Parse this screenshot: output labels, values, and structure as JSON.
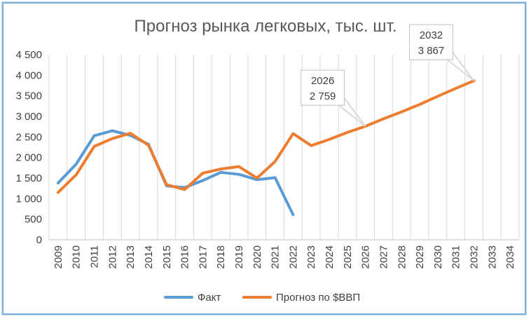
{
  "chart_data": {
    "type": "line",
    "title": "Прогноз рынка легковых, тыс. шт.",
    "xlabel": "",
    "ylabel": "",
    "ylim": [
      0,
      4500
    ],
    "y_ticks": [
      0,
      500,
      1000,
      1500,
      2000,
      2500,
      3000,
      3500,
      4000,
      4500
    ],
    "y_tick_labels": [
      "0",
      "500",
      "1 000",
      "1 500",
      "2 000",
      "2 500",
      "3 000",
      "3 500",
      "4 000",
      "4 500"
    ],
    "categories": [
      "2009",
      "2010",
      "2011",
      "2012",
      "2013",
      "2014",
      "2015",
      "2016",
      "2017",
      "2018",
      "2019",
      "2020",
      "2021",
      "2022",
      "2023",
      "2024",
      "2025",
      "2026",
      "2027",
      "2028",
      "2029",
      "2030",
      "2031",
      "2032",
      "2033",
      "2034"
    ],
    "grid": "vertical",
    "legend_position": "bottom",
    "series": [
      {
        "name": "Факт",
        "color": "#5b9bd5",
        "values": [
          1380,
          1840,
          2530,
          2650,
          2540,
          2320,
          1310,
          1270,
          1440,
          1640,
          1590,
          1460,
          1510,
          610,
          null,
          null,
          null,
          null,
          null,
          null,
          null,
          null,
          null,
          null,
          null,
          null
        ]
      },
      {
        "name": "Прогноз по $ВВП",
        "color": "#ed7d31",
        "values": [
          1150,
          1580,
          2270,
          2460,
          2590,
          2300,
          1340,
          1220,
          1620,
          1720,
          1780,
          1500,
          1900,
          2580,
          2290,
          2440,
          2610,
          2759,
          2940,
          3110,
          3290,
          3490,
          3680,
          3867,
          null,
          null
        ]
      }
    ],
    "annotations": [
      {
        "category": "2026",
        "series": "Прогноз по $ВВП",
        "line1": "2026",
        "line2": "2 759"
      },
      {
        "category": "2032",
        "series": "Прогноз по $ВВП",
        "line1": "2032",
        "line2": "3 867"
      }
    ]
  }
}
